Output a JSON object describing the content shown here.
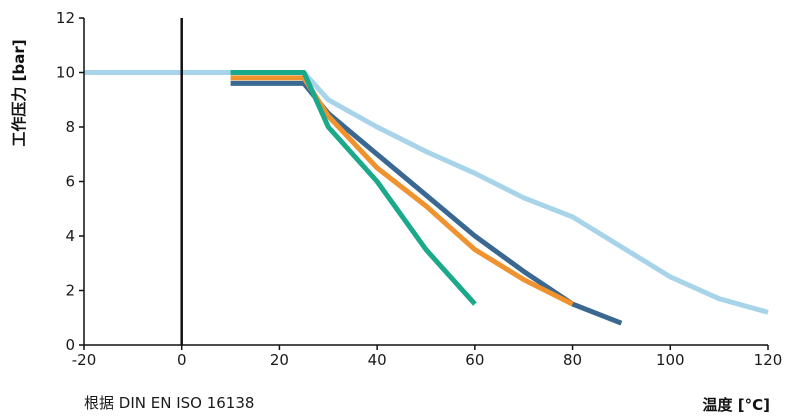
{
  "chart_data": {
    "type": "line",
    "title": "",
    "xlabel": "温度 [°C]",
    "ylabel": "工作压力 [bar]",
    "note": "根据 DIN EN ISO 16138",
    "xlim": [
      -20,
      120
    ],
    "ylim": [
      0,
      12
    ],
    "x_ticks": [
      -20,
      0,
      20,
      40,
      60,
      80,
      100,
      120
    ],
    "y_ticks": [
      0,
      2,
      4,
      6,
      8,
      10,
      12
    ],
    "grid": false,
    "legend": "none",
    "reference_line_x": 0,
    "series": [
      {
        "color": "#a8d4ea",
        "points": [
          [
            -20,
            10
          ],
          [
            25,
            10
          ],
          [
            30,
            9
          ],
          [
            40,
            8
          ],
          [
            50,
            7.1
          ],
          [
            60,
            6.3
          ],
          [
            70,
            5.4
          ],
          [
            80,
            4.7
          ],
          [
            90,
            3.6
          ],
          [
            100,
            2.5
          ],
          [
            110,
            1.7
          ],
          [
            120,
            1.2
          ]
        ]
      },
      {
        "color": "#3a6890",
        "points": [
          [
            10,
            9.6
          ],
          [
            25,
            9.6
          ],
          [
            30,
            8.5
          ],
          [
            40,
            7.0
          ],
          [
            50,
            5.5
          ],
          [
            60,
            4.0
          ],
          [
            70,
            2.7
          ],
          [
            80,
            1.5
          ],
          [
            90,
            0.8
          ]
        ]
      },
      {
        "color": "#f0922e",
        "points": [
          [
            10,
            9.8
          ],
          [
            25,
            9.8
          ],
          [
            30,
            8.4
          ],
          [
            40,
            6.5
          ],
          [
            50,
            5.1
          ],
          [
            60,
            3.5
          ],
          [
            70,
            2.4
          ],
          [
            80,
            1.5
          ]
        ]
      },
      {
        "color": "#1aa98a",
        "points": [
          [
            10,
            10
          ],
          [
            25,
            10
          ],
          [
            30,
            8.0
          ],
          [
            40,
            6.0
          ],
          [
            50,
            3.5
          ],
          [
            60,
            1.5
          ]
        ]
      }
    ]
  }
}
